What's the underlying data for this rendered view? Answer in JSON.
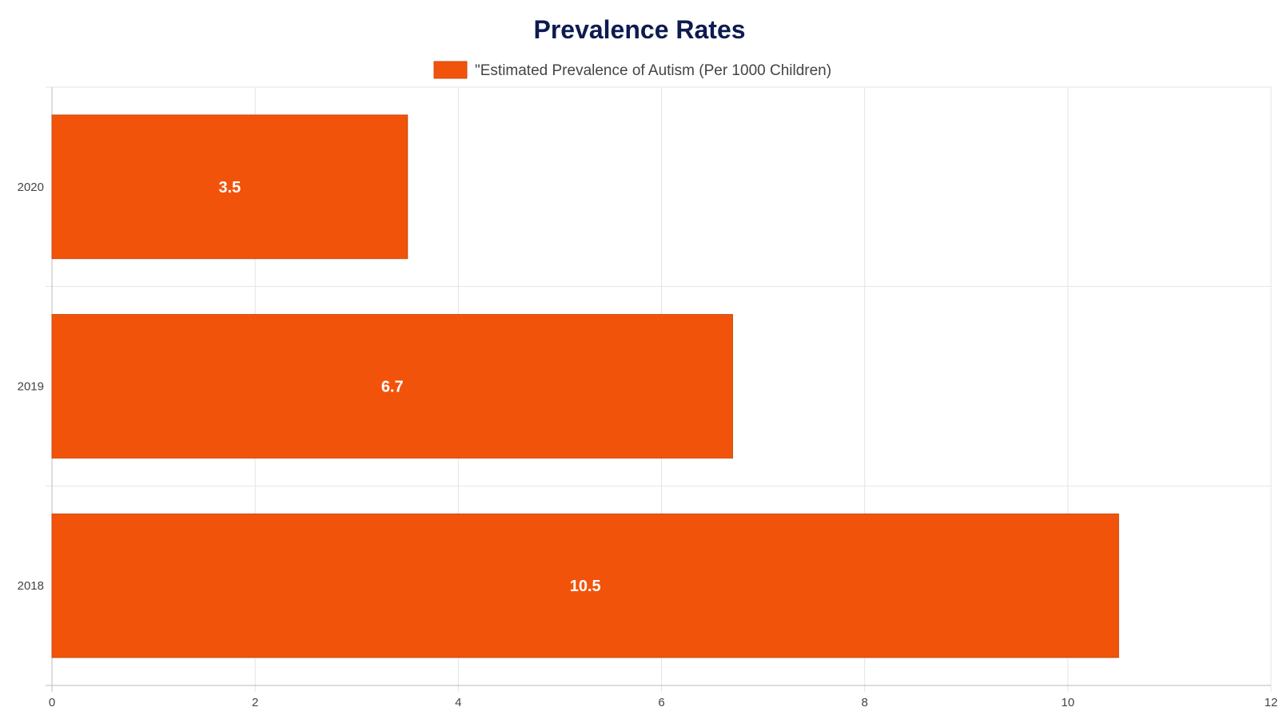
{
  "chart_data": {
    "type": "bar",
    "orientation": "horizontal",
    "title": "Prevalence Rates",
    "categories": [
      "2020",
      "2019",
      "2018"
    ],
    "series": [
      {
        "name": "\"Estimated Prevalence of Autism (Per 1000 Children)",
        "values": [
          3.5,
          6.7,
          10.5
        ],
        "data_labels": [
          "3.5",
          "6.7",
          "10.5"
        ]
      }
    ],
    "xlim": [
      0,
      12
    ],
    "x_ticks": [
      0,
      2,
      4,
      6,
      8,
      10,
      12
    ],
    "x_tick_labels": [
      "0",
      "2",
      "4",
      "6",
      "8",
      "10",
      "12"
    ],
    "xlabel": "",
    "ylabel": "",
    "grid": true,
    "legend_position": "top-center"
  },
  "colors": {
    "bar": "#f2530b",
    "bar_border": "#c94a0e",
    "title": "#0d1b4f",
    "legend_text": "#444444",
    "grid": "#e4e4e4",
    "axis": "#bbbbbb",
    "data_label": "#ffffff"
  }
}
